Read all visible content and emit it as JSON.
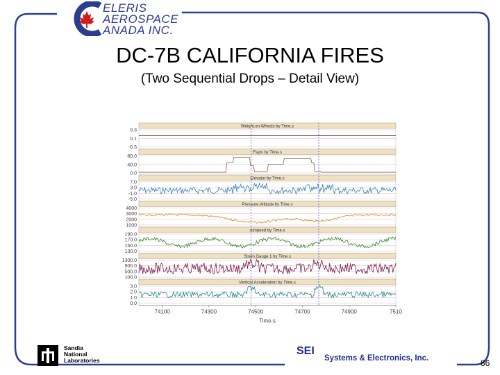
{
  "logo": {
    "line1": "ELERIS",
    "line2": "AEROSPACE",
    "line3": "ANADA  INC."
  },
  "slide": {
    "title": "DC-7B CALIFORNIA FIRES",
    "subtitle": "(Two Sequential Drops – Detail View)",
    "page_number": "86"
  },
  "footer": {
    "sandia_lines": [
      "Sandia",
      "National",
      "Laboratories"
    ],
    "sei_label": "SEI",
    "sei_company": "Systems & Electronics, Inc."
  },
  "colors": {
    "frame": "#2b3d8f",
    "panel_header": "#efe1c0",
    "pressure_altitude": "#d98a1c",
    "elevator": "#2e7fc2",
    "flaps": "#8a5a3c",
    "airspeed": "#2a8a2a",
    "strain": "#7a1a4a",
    "vertical_accel": "#1a8a8a",
    "drop_marker": "#5a5acf"
  },
  "chart_data": {
    "type": "line",
    "xlabel": "Time.s",
    "x_ticks": [
      "74100",
      "74300",
      "74500",
      "74700",
      "74900",
      "7510"
    ],
    "x_range": [
      74000,
      75100
    ],
    "drop_markers_x": [
      74480,
      74770
    ],
    "panels": [
      {
        "title": "Weight.on.Wheels by Time.s",
        "ticks": [
          "0.3",
          "0.1",
          "-0.5"
        ],
        "color": "#000000",
        "shape": "flat"
      },
      {
        "title": "Flaps by Time.s",
        "ticks": [
          "80.0",
          "40.0",
          "0.0"
        ],
        "color": "#8a5a3c",
        "shape": "steps"
      },
      {
        "title": "Elevator by Time.s",
        "ticks": [
          "7.0",
          "3.0",
          "-1.0",
          "-5.0"
        ],
        "color": "#2e7fc2",
        "shape": "noisy"
      },
      {
        "title": "Pressure.Altitude by Time.s",
        "ticks": [
          "4000",
          "3000",
          "2000",
          "1000"
        ],
        "color": "#d98a1c",
        "shape": "dips"
      },
      {
        "title": "Airspeed by Time.s",
        "ticks": [
          "190.0",
          "170.0",
          "150.0",
          "130.0"
        ],
        "color": "#2a8a2a",
        "shape": "wave"
      },
      {
        "title": "Strain.Gauge.1 by Time.s",
        "ticks": [
          "1300.0",
          "900.0",
          "500.0",
          "100.0"
        ],
        "color": "#7a1a4a",
        "shape": "dense"
      },
      {
        "title": "Vertical.Acceleration by Time.s",
        "ticks": [
          "3.0",
          "2.0",
          "1.0",
          "0.0"
        ],
        "color": "#1a8a8a",
        "shape": "accel"
      }
    ]
  }
}
